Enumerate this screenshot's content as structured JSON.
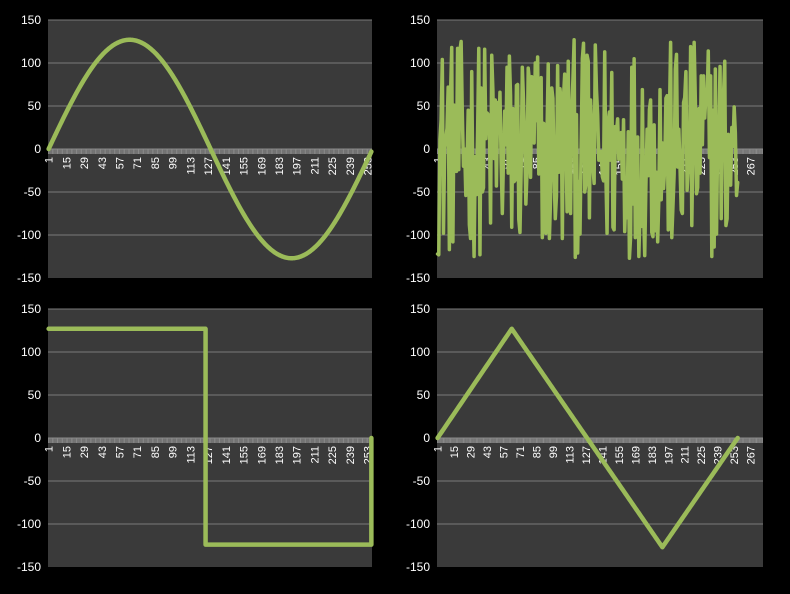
{
  "theme": {
    "background": "#000000",
    "plot_area": "#3a3a3a",
    "gridline": "#7a7a7a",
    "series_color": "#9bbb59",
    "axis_color": "#8a8a8a",
    "text_color": "#ffffff"
  },
  "chart_data": [
    {
      "type": "line",
      "shape": "sine",
      "n_points": 256,
      "x_start": 1,
      "ylim": [
        -150,
        150
      ],
      "y_ticks": [
        150,
        100,
        50,
        0,
        -50,
        -100,
        -150
      ],
      "x_tick_labels": [
        "1",
        "15",
        "29",
        "43",
        "57",
        "71",
        "85",
        "99",
        "113",
        "127",
        "141",
        "155",
        "169",
        "183",
        "197",
        "211",
        "225",
        "239",
        "253"
      ],
      "amplitude": 127,
      "grid": true,
      "legend": "none"
    },
    {
      "type": "line",
      "shape": "random-noise",
      "n_points": 256,
      "x_start": 1,
      "ylim": [
        -150,
        150
      ],
      "y_ticks": [
        150,
        100,
        50,
        0,
        -50,
        -100,
        -150
      ],
      "x_tick_labels": [
        "1",
        "15",
        "29",
        "43",
        "57",
        "71",
        "85",
        "99",
        "113",
        "127",
        "141",
        "155",
        "169",
        "183",
        "197",
        "211",
        "225",
        "239",
        "253",
        "267"
      ],
      "amplitude": 127,
      "grid": true,
      "legend": "none"
    },
    {
      "type": "line",
      "shape": "square",
      "n_points": 256,
      "x_start": 1,
      "ylim": [
        -150,
        150
      ],
      "y_ticks": [
        150,
        100,
        50,
        0,
        -50,
        -100,
        -150
      ],
      "x_tick_labels": [
        "1",
        "15",
        "29",
        "43",
        "57",
        "71",
        "85",
        "99",
        "113",
        "127",
        "141",
        "155",
        "169",
        "183",
        "197",
        "211",
        "225",
        "239",
        "253"
      ],
      "high_value": 127,
      "low_value": -124,
      "switch_x": 125,
      "grid": true,
      "legend": "none"
    },
    {
      "type": "line",
      "shape": "triangle",
      "n_points": 256,
      "x_start": 1,
      "ylim": [
        -150,
        150
      ],
      "y_ticks": [
        150,
        100,
        50,
        0,
        -50,
        -100,
        -150
      ],
      "x_tick_labels": [
        "1",
        "15",
        "29",
        "43",
        "57",
        "71",
        "85",
        "99",
        "113",
        "127",
        "141",
        "155",
        "169",
        "183",
        "197",
        "211",
        "225",
        "239",
        "253",
        "267"
      ],
      "vertices": [
        [
          1,
          0
        ],
        [
          64,
          127
        ],
        [
          192,
          -127
        ],
        [
          256,
          0
        ]
      ],
      "grid": true,
      "legend": "none"
    }
  ]
}
